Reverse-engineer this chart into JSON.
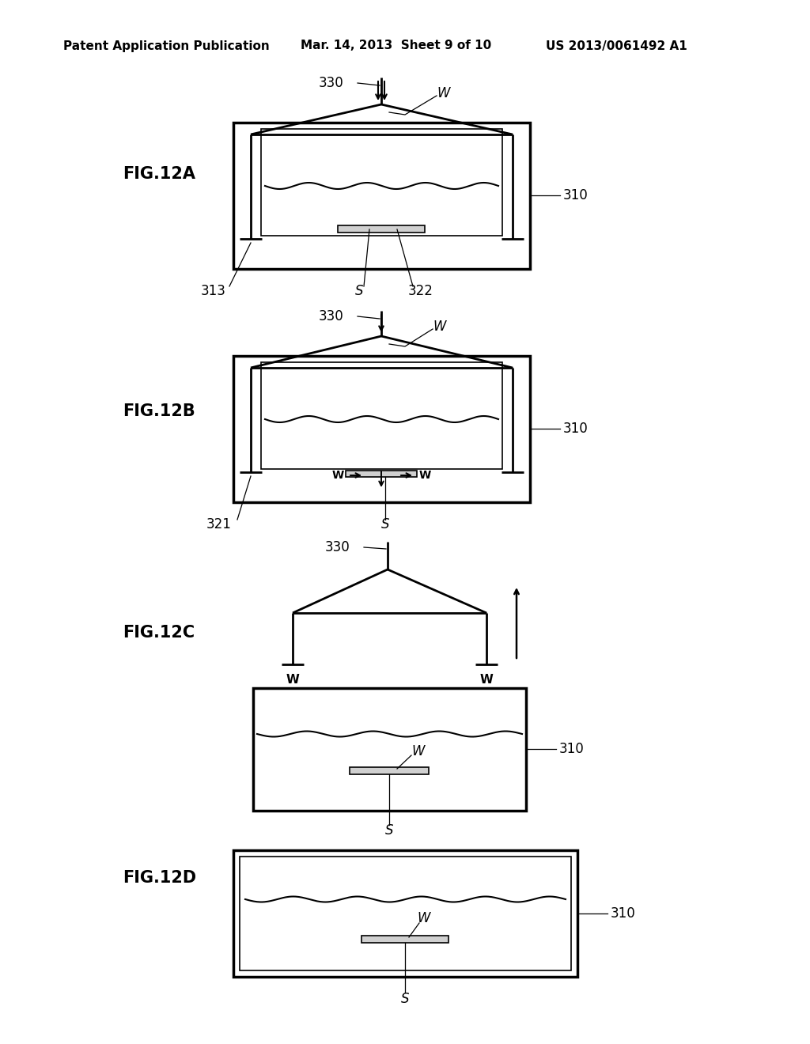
{
  "bg_color": "#ffffff",
  "header_text": "Patent Application Publication",
  "header_date": "Mar. 14, 2013  Sheet 9 of 10",
  "header_patent": "US 2013/0061492 A1",
  "line_color": "#000000",
  "lw": 2.0,
  "lw_thin": 1.2,
  "lw_thick": 2.5,
  "fig_label_fontsize": 15,
  "annot_fontsize": 12,
  "header_fontsize": 11
}
